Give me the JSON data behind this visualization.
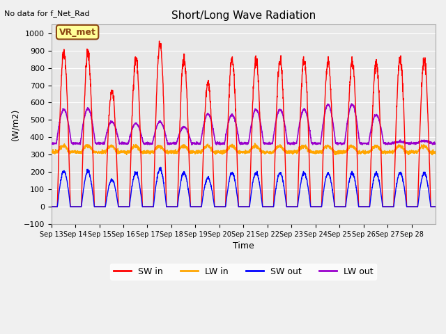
{
  "title": "Short/Long Wave Radiation",
  "xlabel": "Time",
  "ylabel": "(W/m2)",
  "ylim": [
    -100,
    1050
  ],
  "top_left_text": "No data for f_Net_Rad",
  "legend_box_text": "VR_met",
  "background_color": "#e8e8e8",
  "x_tick_labels": [
    "Sep 13",
    "Sep 14",
    "Sep 15",
    "Sep 16",
    "Sep 17",
    "Sep 18",
    "Sep 19",
    "Sep 20",
    "Sep 21",
    "Sep 22",
    "Sep 23",
    "Sep 24",
    "Sep 25",
    "Sep 26",
    "Sep 27",
    "Sep 28"
  ],
  "colors": {
    "SW_in": "#ff0000",
    "LW_in": "#ffa500",
    "SW_out": "#0000ff",
    "LW_out": "#9900cc"
  },
  "legend_labels": [
    "SW in",
    "LW in",
    "SW out",
    "LW out"
  ],
  "n_days": 16,
  "grid_color": "#ffffff",
  "yticks": [
    -100,
    0,
    100,
    200,
    300,
    400,
    500,
    600,
    700,
    800,
    900,
    1000
  ],
  "sw_in_peaks": [
    895,
    885,
    670,
    855,
    940,
    855,
    720,
    850,
    850,
    845,
    845,
    830,
    840,
    830,
    850,
    840
  ],
  "lw_out_day_peaks": [
    560,
    565,
    490,
    480,
    490,
    460,
    535,
    530,
    560,
    560,
    560,
    590,
    590,
    530,
    375,
    380
  ]
}
